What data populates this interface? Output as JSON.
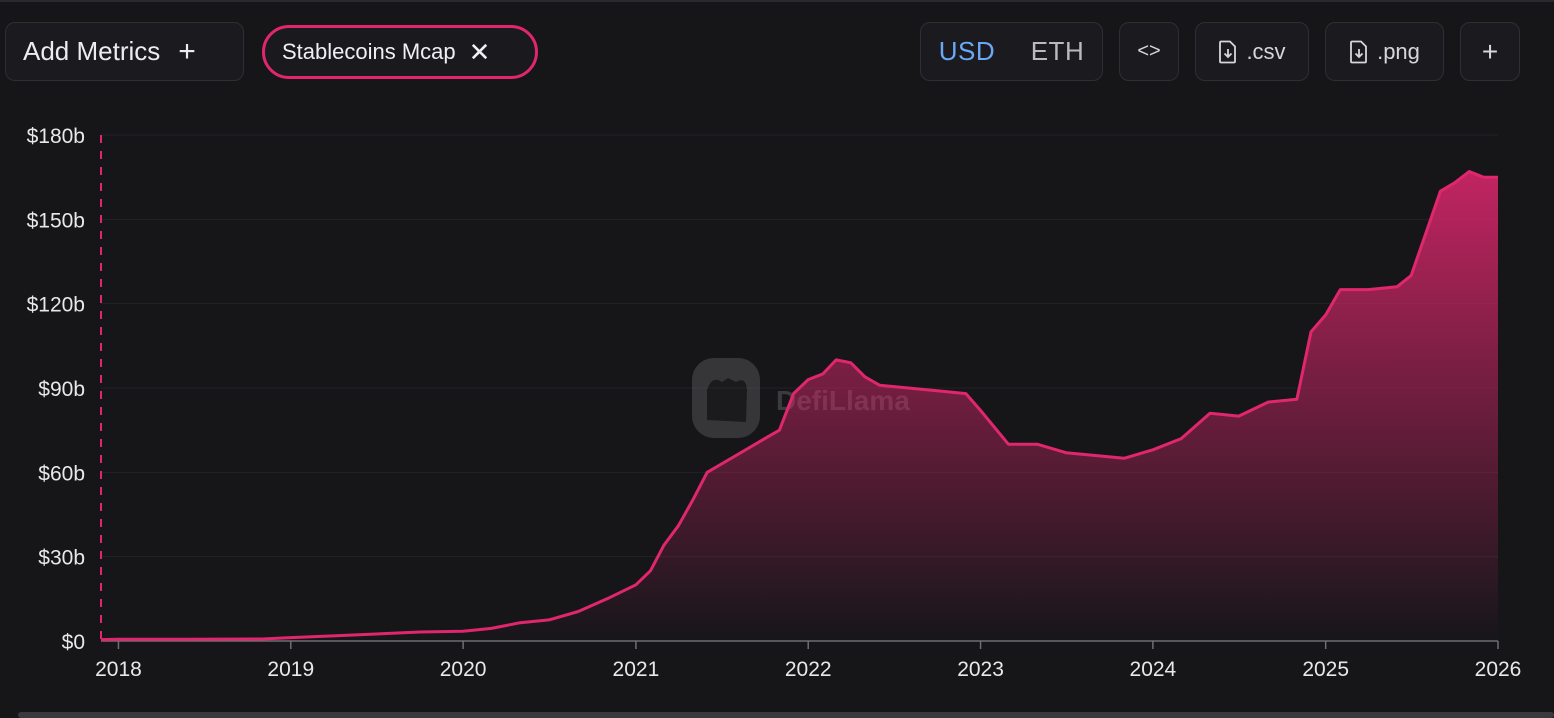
{
  "toolbar": {
    "add_metrics_label": "Add Metrics",
    "add_icon": "plus-icon",
    "selected_metric": "Stablecoins Mcap",
    "remove_icon": "close-icon",
    "currency_options": [
      "USD",
      "ETH"
    ],
    "currency_selected": "USD",
    "embed_icon": "code-icon",
    "csv_label": ".csv",
    "png_label": ".png",
    "download_icon": "file-download-icon",
    "more_label": "+"
  },
  "colors": {
    "accent": "#e0276e",
    "active_toggle": "#6aa7f5",
    "background": "#161619"
  },
  "watermark": "DefiLlama",
  "chart_data": {
    "type": "area",
    "title": "",
    "xlabel": "",
    "ylabel": "",
    "x_ticks": [
      "2018",
      "2019",
      "2020",
      "2021",
      "2022",
      "2023",
      "2024",
      "2025",
      "2026"
    ],
    "y_ticks": [
      "$0",
      "$30b",
      "$60b",
      "$90b",
      "$120b",
      "$150b",
      "$180b"
    ],
    "ylim": [
      0,
      180
    ],
    "xlim": [
      "2017-11-25",
      "2026-01-01"
    ],
    "grid": true,
    "series": [
      {
        "name": "Stablecoins Mcap",
        "unit": "billion USD",
        "x": [
          "2017-11-25",
          "2018-01-01",
          "2018-06-01",
          "2018-11-01",
          "2019-01-01",
          "2019-04-01",
          "2019-07-01",
          "2019-10-01",
          "2020-01-01",
          "2020-03-01",
          "2020-05-01",
          "2020-07-01",
          "2020-09-01",
          "2020-11-01",
          "2021-01-01",
          "2021-02-01",
          "2021-03-01",
          "2021-04-01",
          "2021-05-01",
          "2021-06-01",
          "2021-08-01",
          "2021-10-01",
          "2021-11-01",
          "2021-12-01",
          "2022-01-01",
          "2022-02-01",
          "2022-03-01",
          "2022-04-01",
          "2022-05-01",
          "2022-06-01",
          "2022-08-01",
          "2022-10-01",
          "2022-12-01",
          "2023-01-01",
          "2023-03-01",
          "2023-05-01",
          "2023-07-01",
          "2023-09-01",
          "2023-11-01",
          "2024-01-01",
          "2024-03-01",
          "2024-05-01",
          "2024-07-01",
          "2024-09-01",
          "2024-11-01",
          "2024-12-01",
          "2025-01-01",
          "2025-02-01",
          "2025-04-01",
          "2025-06-01",
          "2025-07-01",
          "2025-08-01",
          "2025-09-01",
          "2025-10-01",
          "2025-11-01",
          "2025-12-01",
          "2026-01-01"
        ],
        "y": [
          0.5,
          0.6,
          0.6,
          0.7,
          1.2,
          1.8,
          2.5,
          3.2,
          3.5,
          4.5,
          6.5,
          7.5,
          10.5,
          15.0,
          20.0,
          25.0,
          34.0,
          41.0,
          50.0,
          60.0,
          66.0,
          72.0,
          75.0,
          88.0,
          93.0,
          95.0,
          100.0,
          99.0,
          94.0,
          91.0,
          90.0,
          89.0,
          88.0,
          82.0,
          70.0,
          70.0,
          67.0,
          66.0,
          65.0,
          68.0,
          72.0,
          81.0,
          80.0,
          85.0,
          86.0,
          110.0,
          116.0,
          125.0,
          125.0,
          126.0,
          130.0,
          145.0,
          160.0,
          163.0,
          167.0,
          165.0,
          165.0
        ]
      }
    ]
  }
}
